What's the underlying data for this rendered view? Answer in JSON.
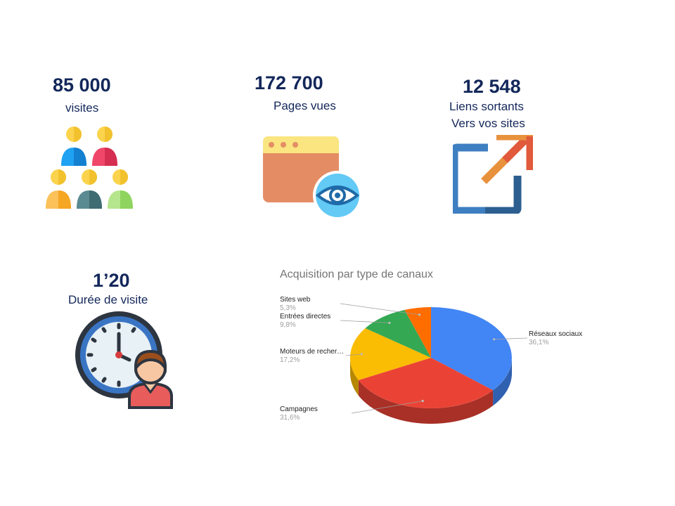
{
  "stats": {
    "visits": {
      "value": "85 000",
      "label": "visites",
      "icon": "people-group-icon"
    },
    "pageviews": {
      "value": "172 700",
      "label": "Pages vues",
      "icon": "browser-eye-icon"
    },
    "outlinks": {
      "value": "12 548",
      "label_line1": "Liens sortants",
      "label_line2": "Vers vos sites",
      "icon": "external-link-icon"
    },
    "duration": {
      "value": "1’20",
      "label": "Durée de visite",
      "icon": "clock-person-icon"
    }
  },
  "colors": {
    "stat_text": "#13275a",
    "accent_blue": "#3e7fc1"
  },
  "chart_data": {
    "type": "pie",
    "style": "3d",
    "title": "Acquisition par type de canaux",
    "legend": "none",
    "labels_position": "outside-with-leader-lines",
    "slices": [
      {
        "name": "Réseaux sociaux",
        "value": 36.1,
        "label": "36,1%",
        "color": "#4285f4"
      },
      {
        "name": "Campagnes",
        "value": 31.6,
        "label": "31,6%",
        "color": "#ea4335"
      },
      {
        "name": "Moteurs de recher…",
        "value": 17.2,
        "label": "17,2%",
        "color": "#fbbc04"
      },
      {
        "name": "Entrées directes",
        "value": 9.8,
        "label": "9,8%",
        "color": "#34a853"
      },
      {
        "name": "Sites web",
        "value": 5.3,
        "label": "5,3%",
        "color": "#ff6d01"
      }
    ]
  }
}
